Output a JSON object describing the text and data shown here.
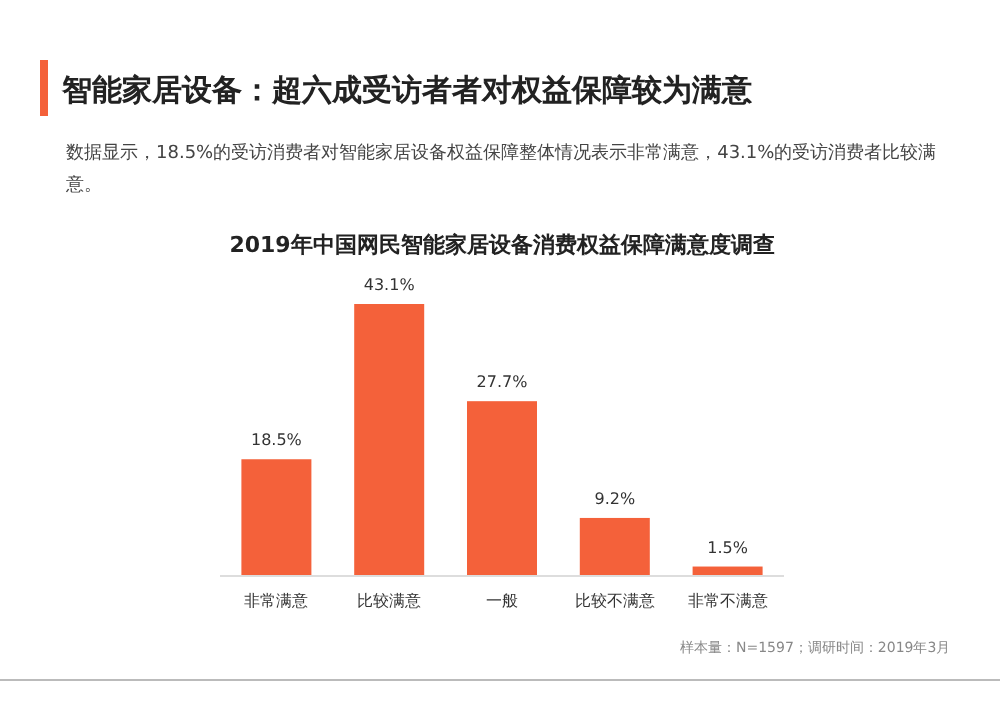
{
  "chart_data": {
    "type": "bar",
    "title": "智能家居设备：超六成受访者者对权益保障较为满意",
    "subtitle": "2019年中国网民智能家居设备消费权益保障满意度调查",
    "annotations": [
      "数据显示，18.5%的受访消费者对智能家居设备权益保障整体情况表示非常满意，43.1%的受访消费者比较满意。",
      "样本量：N=1597；调研时间：2019年3月"
    ],
    "categories": [
      "非常满意",
      "比较满意",
      "一般",
      "比较不满意",
      "非常不满意"
    ],
    "values": [
      18.5,
      43.1,
      27.7,
      9.2,
      1.5
    ],
    "value_labels": [
      "18.5%",
      "43.1%",
      "27.7%",
      "9.2%",
      "1.5%"
    ],
    "color": "#f4613a"
  }
}
